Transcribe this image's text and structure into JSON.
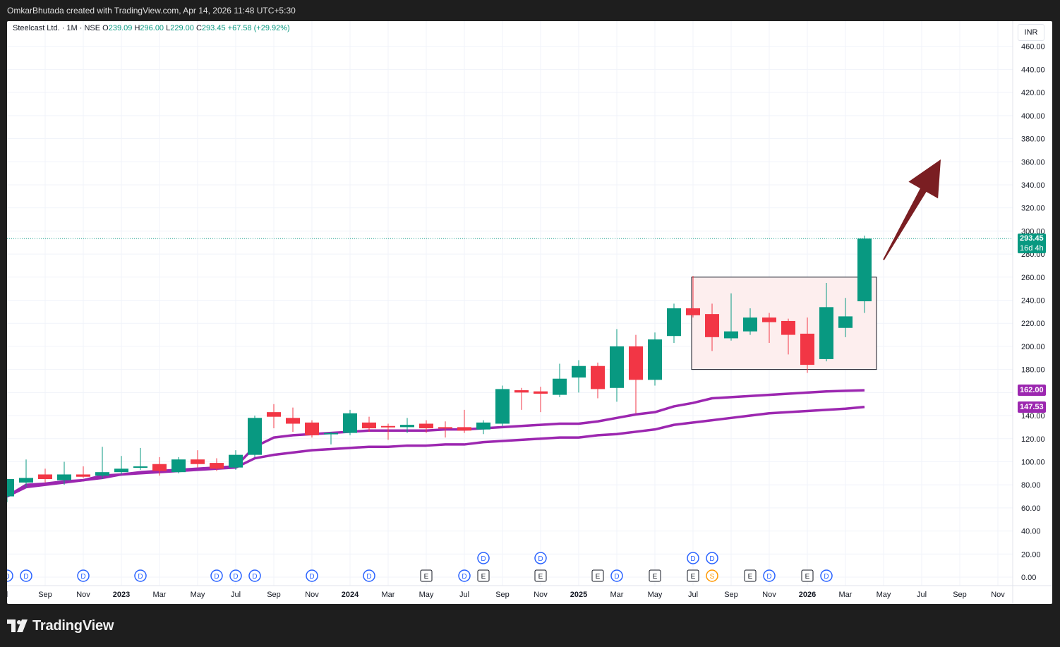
{
  "header": {
    "credit": "OmkarBhutada created with TradingView.com, Apr 14, 2026 11:48 UTC+5:30"
  },
  "legend": {
    "symbol": "Steelcast Ltd. · 1M · NSE",
    "open_label": "O",
    "open": "239.09",
    "high_label": "H",
    "high": "296.00",
    "low_label": "L",
    "low": "229.00",
    "close_label": "C",
    "close": "293.45",
    "change": "+67.58 (+29.92%)"
  },
  "currency": "INR",
  "price_tag": {
    "value": "293.45",
    "countdown": "16d 4h"
  },
  "ma_tags": [
    {
      "value": "162.00"
    },
    {
      "value": "147.53"
    }
  ],
  "footer": {
    "brand": "TradingView"
  },
  "colors": {
    "up": "#089981",
    "down": "#f23645",
    "ma": "#9c27b0",
    "arrow": "#7a1e22",
    "box_border": "#131722",
    "box_fill": "#fdeeee"
  },
  "chart_data": {
    "type": "candlestick",
    "title": "Steelcast Ltd. · 1M · NSE",
    "ylim": [
      0,
      460
    ],
    "y_ticks": [
      "460.00",
      "440.00",
      "420.00",
      "400.00",
      "380.00",
      "360.00",
      "340.00",
      "320.00",
      "300.00",
      "280.00",
      "260.00",
      "240.00",
      "220.00",
      "200.00",
      "180.00",
      "160.00",
      "140.00",
      "120.00",
      "100.00",
      "80.00",
      "60.00",
      "40.00",
      "20.00",
      "0.00"
    ],
    "x_ticks": [
      "l",
      "Sep",
      "Nov",
      "2023",
      "Mar",
      "May",
      "Jul",
      "Sep",
      "Nov",
      "2024",
      "Mar",
      "May",
      "Jul",
      "Sep",
      "Nov",
      "2025",
      "Mar",
      "May",
      "Jul",
      "Sep",
      "Nov",
      "2026",
      "Mar",
      "May",
      "Jul",
      "Sep",
      "Nov"
    ],
    "candles": [
      {
        "t": "2022-07",
        "o": 70,
        "h": 85,
        "l": 65,
        "c": 85
      },
      {
        "t": "2022-08",
        "o": 82,
        "h": 102,
        "l": 78,
        "c": 86
      },
      {
        "t": "2022-09",
        "o": 89,
        "h": 94,
        "l": 82,
        "c": 85
      },
      {
        "t": "2022-10",
        "o": 84,
        "h": 100,
        "l": 80,
        "c": 89
      },
      {
        "t": "2022-11",
        "o": 89,
        "h": 96,
        "l": 86,
        "c": 87
      },
      {
        "t": "2022-12",
        "o": 88,
        "h": 113,
        "l": 85,
        "c": 91
      },
      {
        "t": "2023-01",
        "o": 91,
        "h": 105,
        "l": 89,
        "c": 94
      },
      {
        "t": "2023-02",
        "o": 95,
        "h": 112,
        "l": 93,
        "c": 96
      },
      {
        "t": "2023-03",
        "o": 98,
        "h": 104,
        "l": 88,
        "c": 92
      },
      {
        "t": "2023-04",
        "o": 91,
        "h": 104,
        "l": 90,
        "c": 102
      },
      {
        "t": "2023-05",
        "o": 102,
        "h": 110,
        "l": 95,
        "c": 98
      },
      {
        "t": "2023-06",
        "o": 99,
        "h": 103,
        "l": 92,
        "c": 94
      },
      {
        "t": "2023-07",
        "o": 95,
        "h": 110,
        "l": 93,
        "c": 106
      },
      {
        "t": "2023-08",
        "o": 106,
        "h": 140,
        "l": 104,
        "c": 138
      },
      {
        "t": "2023-09",
        "o": 143,
        "h": 150,
        "l": 129,
        "c": 139
      },
      {
        "t": "2023-10",
        "o": 138,
        "h": 147,
        "l": 126,
        "c": 133
      },
      {
        "t": "2023-11",
        "o": 134,
        "h": 136,
        "l": 121,
        "c": 123
      },
      {
        "t": "2023-12",
        "o": 124,
        "h": 126,
        "l": 115,
        "c": 125
      },
      {
        "t": "2024-01",
        "o": 125,
        "h": 145,
        "l": 123,
        "c": 142
      },
      {
        "t": "2024-02",
        "o": 134,
        "h": 139,
        "l": 126,
        "c": 129
      },
      {
        "t": "2024-03",
        "o": 131,
        "h": 133,
        "l": 119,
        "c": 130
      },
      {
        "t": "2024-04",
        "o": 130,
        "h": 138,
        "l": 125,
        "c": 132
      },
      {
        "t": "2024-05",
        "o": 133,
        "h": 136,
        "l": 125,
        "c": 129
      },
      {
        "t": "2024-06",
        "o": 130,
        "h": 135,
        "l": 121,
        "c": 129
      },
      {
        "t": "2024-07",
        "o": 130,
        "h": 145,
        "l": 125,
        "c": 127
      },
      {
        "t": "2024-08",
        "o": 128,
        "h": 136,
        "l": 124,
        "c": 134
      },
      {
        "t": "2024-09",
        "o": 133,
        "h": 166,
        "l": 131,
        "c": 163
      },
      {
        "t": "2024-10",
        "o": 162,
        "h": 164,
        "l": 145,
        "c": 160
      },
      {
        "t": "2024-11",
        "o": 161,
        "h": 165,
        "l": 143,
        "c": 159
      },
      {
        "t": "2024-12",
        "o": 158,
        "h": 185,
        "l": 156,
        "c": 172
      },
      {
        "t": "2025-01",
        "o": 173,
        "h": 188,
        "l": 160,
        "c": 183
      },
      {
        "t": "2025-02",
        "o": 183,
        "h": 186,
        "l": 155,
        "c": 163
      },
      {
        "t": "2025-03",
        "o": 164,
        "h": 215,
        "l": 152,
        "c": 200
      },
      {
        "t": "2025-04",
        "o": 200,
        "h": 210,
        "l": 142,
        "c": 171
      },
      {
        "t": "2025-05",
        "o": 171,
        "h": 212,
        "l": 166,
        "c": 206
      },
      {
        "t": "2025-06",
        "o": 209,
        "h": 237,
        "l": 203,
        "c": 233
      },
      {
        "t": "2025-07",
        "o": 233,
        "h": 261,
        "l": 225,
        "c": 227
      },
      {
        "t": "2025-08",
        "o": 228,
        "h": 237,
        "l": 196,
        "c": 208
      },
      {
        "t": "2025-09",
        "o": 207,
        "h": 246,
        "l": 205,
        "c": 213
      },
      {
        "t": "2025-10",
        "o": 213,
        "h": 233,
        "l": 210,
        "c": 225
      },
      {
        "t": "2025-11",
        "o": 225,
        "h": 229,
        "l": 203,
        "c": 221
      },
      {
        "t": "2025-12",
        "o": 222,
        "h": 224,
        "l": 193,
        "c": 210
      },
      {
        "t": "2026-01",
        "o": 211,
        "h": 225,
        "l": 177,
        "c": 184
      },
      {
        "t": "2026-02",
        "o": 189,
        "h": 255,
        "l": 187,
        "c": 234
      },
      {
        "t": "2026-03",
        "o": 216,
        "h": 242,
        "l": 208,
        "c": 226
      },
      {
        "t": "2026-04",
        "o": 239.09,
        "h": 296,
        "l": 229,
        "c": 293.45
      }
    ],
    "ma_upper": [
      70,
      80,
      81,
      83,
      84,
      86,
      89,
      91,
      92,
      93,
      94,
      95,
      96,
      113,
      121,
      123,
      124,
      125,
      126,
      127,
      127,
      127,
      127,
      128,
      128,
      129,
      130,
      131,
      132,
      133,
      133,
      135,
      138,
      141,
      143,
      148,
      151,
      155,
      156,
      157,
      158,
      159,
      160,
      161,
      161.5,
      162
    ],
    "ma_lower": [
      70,
      78,
      80,
      82,
      84,
      88,
      89,
      90,
      91,
      92,
      93,
      94,
      95,
      103,
      106,
      108,
      110,
      111,
      112,
      113,
      113,
      114,
      114,
      115,
      115,
      117,
      118,
      119,
      120,
      121,
      121,
      123,
      124,
      126,
      128,
      132,
      134,
      136,
      138,
      140,
      142,
      143,
      144,
      145,
      146,
      147.53
    ],
    "consolidation_box": {
      "start": "2025-07",
      "end": "2026-04",
      "low": 180,
      "high": 260
    },
    "arrow": {
      "from": [
        "2026-05",
        275
      ],
      "to": [
        "2026-08",
        362
      ]
    },
    "event_markers": [
      {
        "t": "2022-07",
        "label": "D"
      },
      {
        "t": "2022-08",
        "label": "D"
      },
      {
        "t": "2022-11",
        "label": "D"
      },
      {
        "t": "2023-02",
        "label": "D"
      },
      {
        "t": "2023-06",
        "label": "D"
      },
      {
        "t": "2023-07",
        "label": "D"
      },
      {
        "t": "2023-08",
        "label": "D"
      },
      {
        "t": "2023-11",
        "label": "D"
      },
      {
        "t": "2024-02",
        "label": "D"
      },
      {
        "t": "2024-05",
        "label": "E"
      },
      {
        "t": "2024-07",
        "label": "D"
      },
      {
        "t": "2024-08",
        "label": "E"
      },
      {
        "t": "2024-08",
        "label": "D",
        "row": 2
      },
      {
        "t": "2024-11",
        "label": "E"
      },
      {
        "t": "2024-11",
        "label": "D",
        "row": 2
      },
      {
        "t": "2025-02",
        "label": "E"
      },
      {
        "t": "2025-03",
        "label": "D"
      },
      {
        "t": "2025-05",
        "label": "E"
      },
      {
        "t": "2025-07",
        "label": "E"
      },
      {
        "t": "2025-07",
        "label": "D",
        "row": 2
      },
      {
        "t": "2025-08",
        "label": "S"
      },
      {
        "t": "2025-08",
        "label": "D",
        "row": 2
      },
      {
        "t": "2025-10",
        "label": "E"
      },
      {
        "t": "2025-11",
        "label": "D"
      },
      {
        "t": "2026-01",
        "label": "E"
      },
      {
        "t": "2026-02",
        "label": "D"
      }
    ]
  }
}
